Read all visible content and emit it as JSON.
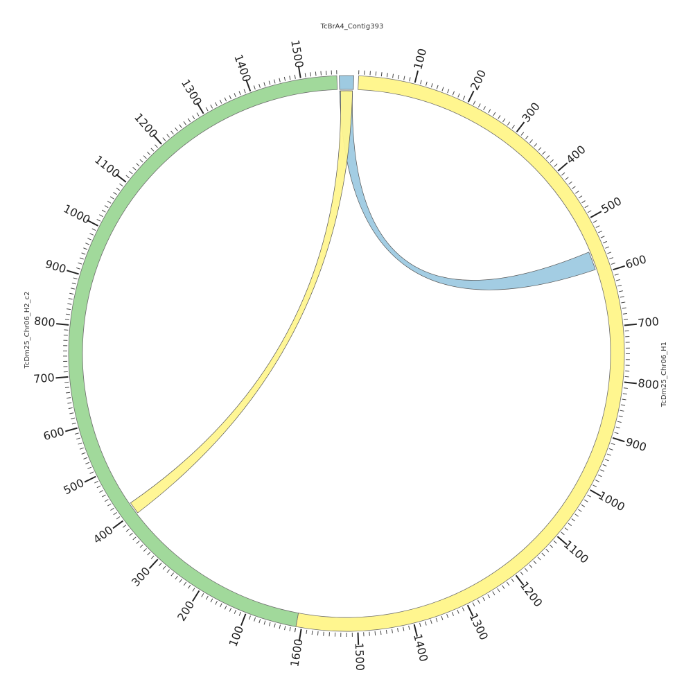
{
  "diagram": {
    "type": "circos",
    "segments": [
      {
        "name": "TcBrA4_Contig393",
        "color": "#9ecae1",
        "length": 30,
        "tick_labels": []
      },
      {
        "name": "TcDm25_Chr06_H1",
        "color": "#fff68f",
        "length": 1610,
        "tick_labels": [
          "100",
          "200",
          "300",
          "400",
          "500",
          "600",
          "700",
          "800",
          "900",
          "1000",
          "1100",
          "1200",
          "1300",
          "1400",
          "1500",
          "1600"
        ]
      },
      {
        "name": "TcDm25_Chr06_H2_c2",
        "color": "#a1d99b",
        "length": 1570,
        "tick_labels": [
          "100",
          "200",
          "300",
          "400",
          "500",
          "600",
          "700",
          "800",
          "900",
          "1000",
          "1100",
          "1200",
          "1300",
          "1400",
          "1500"
        ]
      }
    ],
    "links": [
      {
        "from": "TcBrA4_Contig393",
        "from_range": [
          0,
          28
        ],
        "to": "TcDm25_Chr06_H1",
        "to_range": [
          555,
          590
        ],
        "color": "#9ecae1"
      },
      {
        "from": "TcBrA4_Contig393",
        "from_range": [
          2,
          28
        ],
        "to": "TcDm25_Chr06_H2_c2",
        "to_range": [
          395,
          420
        ],
        "color": "#fff68f"
      }
    ]
  }
}
